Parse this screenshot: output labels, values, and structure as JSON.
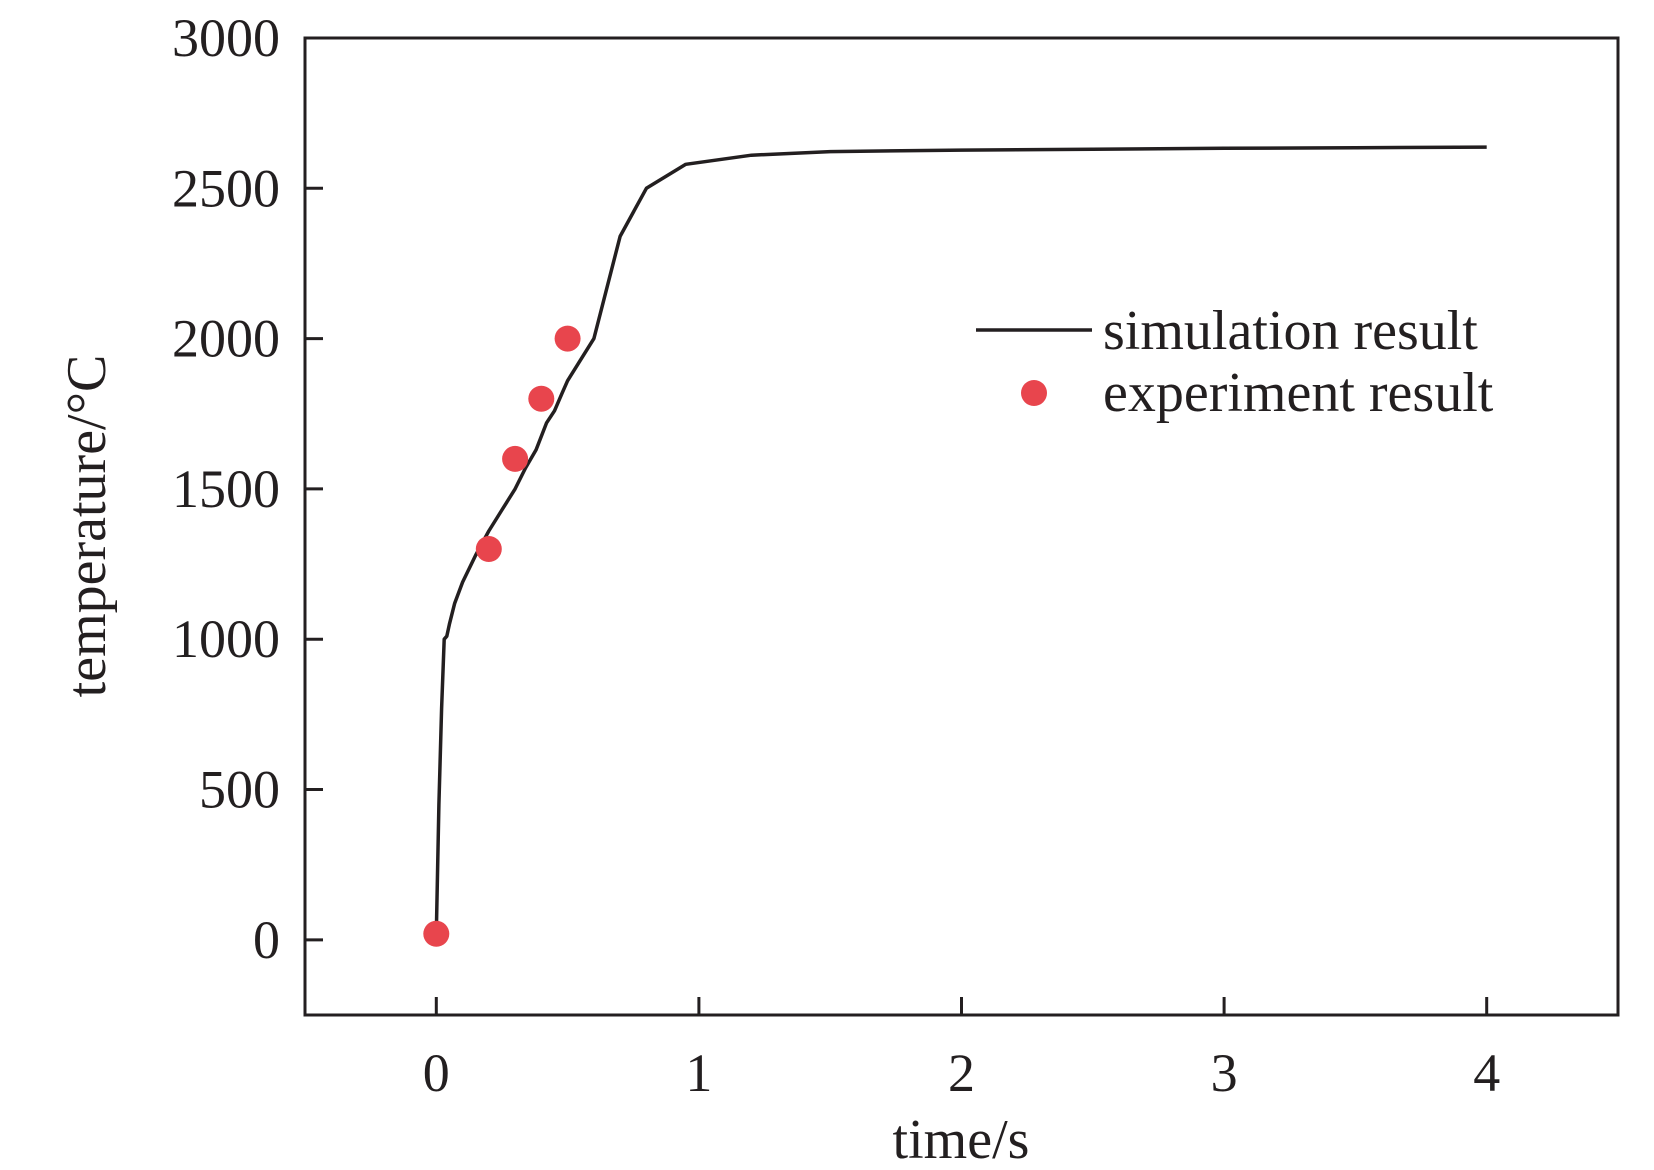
{
  "chart_data": {
    "type": "line",
    "title": "",
    "xlabel": "time/s",
    "ylabel": "temperature/°C",
    "xlim": [
      -0.5,
      4.5
    ],
    "ylim": [
      -250,
      3000
    ],
    "xticks": [
      0,
      1,
      2,
      3,
      4
    ],
    "yticks": [
      0,
      500,
      1000,
      1500,
      2000,
      2500,
      3000
    ],
    "grid": false,
    "legend_position": "right",
    "series": [
      {
        "name": "simulation result",
        "kind": "line",
        "color": "#231f20",
        "x": [
          0,
          0.01,
          0.02,
          0.03,
          0.04,
          0.05,
          0.07,
          0.1,
          0.15,
          0.2,
          0.25,
          0.3,
          0.34,
          0.38,
          0.42,
          0.45,
          0.48,
          0.5,
          0.55,
          0.6,
          0.7,
          0.8,
          0.95,
          1.2,
          1.5,
          2,
          2.5,
          3,
          3.5,
          4
        ],
        "y": [
          20,
          450,
          770,
          1000,
          1010,
          1050,
          1120,
          1190,
          1280,
          1360,
          1430,
          1500,
          1570,
          1630,
          1720,
          1760,
          1820,
          1860,
          1930,
          2000,
          2340,
          2500,
          2580,
          2610,
          2622,
          2627,
          2630,
          2633,
          2635,
          2637
        ]
      },
      {
        "name": "experiment result",
        "kind": "scatter",
        "color": "#e8454d",
        "x": [
          0,
          0.2,
          0.3,
          0.4,
          0.5
        ],
        "y": [
          20,
          1300,
          1600,
          1800,
          2000
        ]
      }
    ]
  }
}
